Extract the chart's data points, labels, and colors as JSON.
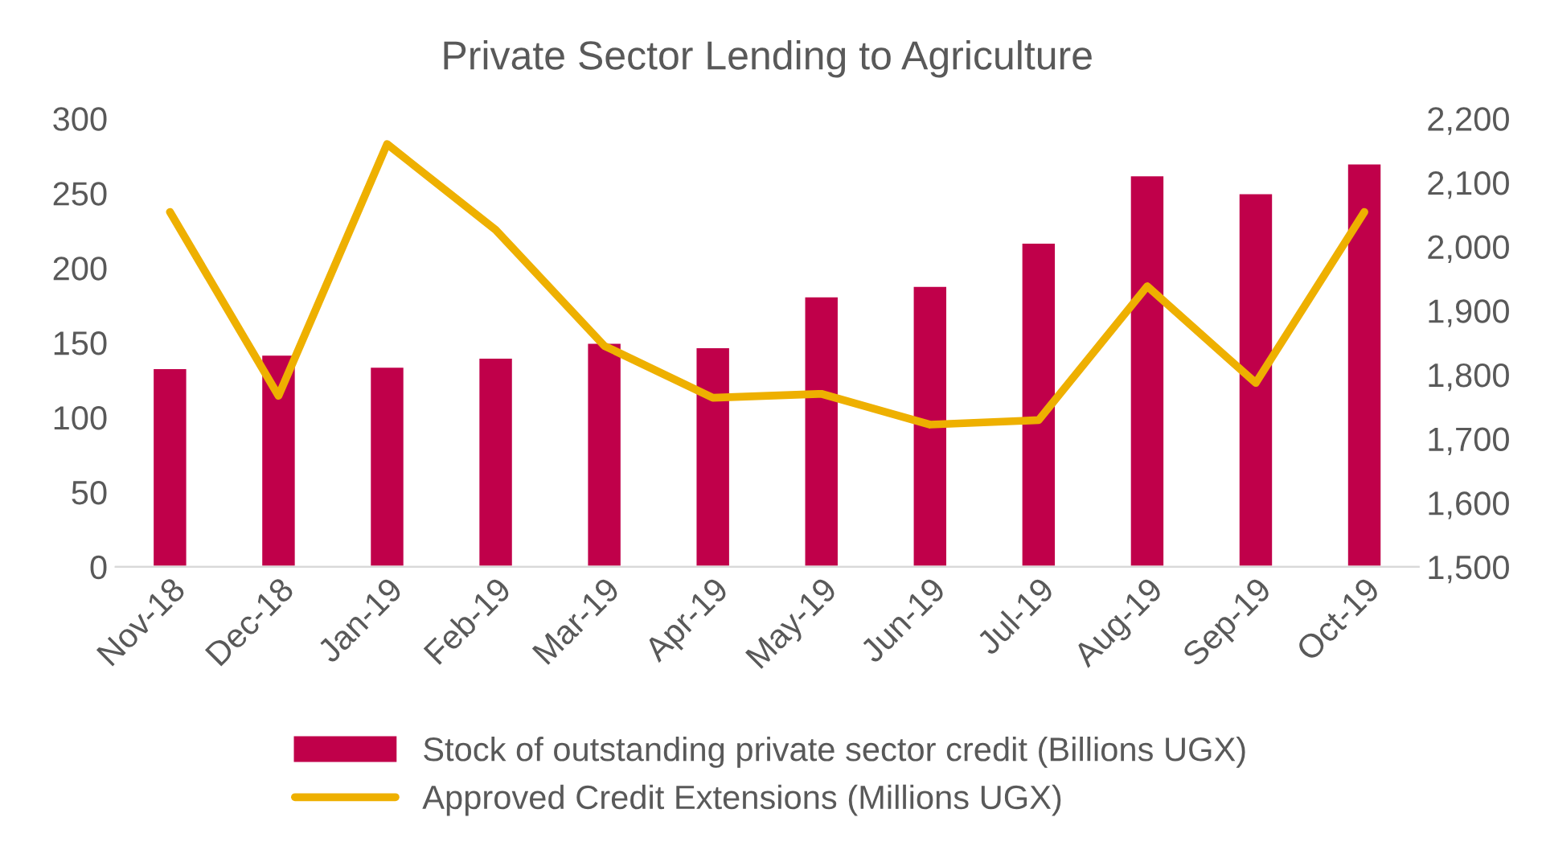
{
  "chart_data": {
    "type": "bar",
    "title": "Private Sector Lending to Agriculture",
    "categories": [
      "Nov-18",
      "Dec-18",
      "Jan-19",
      "Feb-19",
      "Mar-19",
      "Apr-19",
      "May-19",
      "Jun-19",
      "Jul-19",
      "Aug-19",
      "Sep-19",
      "Oct-19"
    ],
    "series": [
      {
        "name": "Stock of outstanding private sector credit (Billions UGX)",
        "color": "#c0004a",
        "values": [
          133,
          142,
          134,
          140,
          150,
          147,
          181,
          188,
          217,
          262,
          250,
          270
        ]
      },
      {
        "name": "Approved Credit Extensions (Millions UGX)",
        "type": "line",
        "axis": "y2",
        "color": "#eeb000",
        "values": [
          2054,
          1767,
          2160,
          2026,
          1845,
          1764,
          1770,
          1722,
          1729,
          1938,
          1787,
          2054
        ]
      }
    ],
    "ylim": [
      0,
      300
    ],
    "yticks": [
      0,
      50,
      100,
      150,
      200,
      250,
      300
    ],
    "y2lim": [
      1500,
      2200
    ],
    "y2ticks": [
      {
        "value": 1500,
        "label": "1,500"
      },
      {
        "value": 1600,
        "label": "1,600"
      },
      {
        "value": 1700,
        "label": "1,700"
      },
      {
        "value": 1800,
        "label": "1,800"
      },
      {
        "value": 1900,
        "label": "1,900"
      },
      {
        "value": 2000,
        "label": "2,000"
      },
      {
        "value": 2100,
        "label": "2,100"
      },
      {
        "value": 2200,
        "label": "2,200"
      }
    ],
    "legend": "bottom",
    "grid": false,
    "marker": "none",
    "line_style": "solid"
  }
}
